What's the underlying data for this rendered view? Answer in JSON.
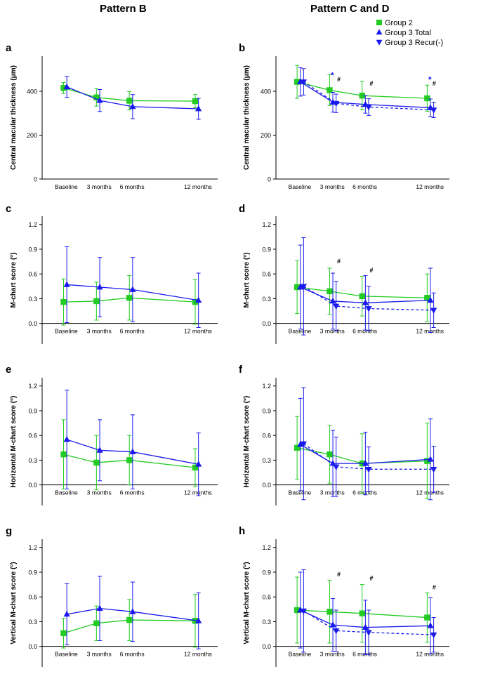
{
  "headers": {
    "left": "Pattern B",
    "right": "Pattern C and D"
  },
  "legend": {
    "items": [
      {
        "label": "Group 2",
        "color": "#22cc22",
        "marker": "square"
      },
      {
        "label": "Group 3 Total",
        "color": "#1a1aee",
        "marker": "triangle-up"
      },
      {
        "label": "Group 3 Recur(-)",
        "color": "#1a1aee",
        "marker": "triangle-down"
      }
    ]
  },
  "chart_data": [
    {
      "id": "a",
      "type": "line",
      "panel_label": "a",
      "ylabel": "Central macular thickness (μm)",
      "categories": [
        "Baseline",
        "3 months",
        "6 months",
        "12 months"
      ],
      "x": [
        0,
        3,
        6,
        12
      ],
      "ylim": [
        0,
        560
      ],
      "yticks": [
        "0",
        "200",
        "400"
      ],
      "ytick_values": [
        0,
        200,
        400
      ],
      "series": [
        {
          "name": "Group 2",
          "values": [
            415,
            372,
            357,
            355
          ],
          "err": [
            [
              25,
              25
            ],
            [
              40,
              40
            ],
            [
              42,
              42
            ],
            [
              30,
              30
            ]
          ]
        },
        {
          "name": "Group 3 Total",
          "values": [
            420,
            358,
            330,
            320
          ],
          "err": [
            [
              48,
              48
            ],
            [
              50,
              50
            ],
            [
              55,
              55
            ],
            [
              48,
              48
            ]
          ]
        }
      ],
      "annotations": []
    },
    {
      "id": "b",
      "type": "line",
      "panel_label": "b",
      "ylabel": "Central macular thickness (μm)",
      "categories": [
        "Baseline",
        "3 months",
        "6 months",
        "12 months"
      ],
      "x": [
        0,
        3,
        6,
        12
      ],
      "ylim": [
        0,
        560
      ],
      "yticks": [
        "0",
        "200",
        "400"
      ],
      "ytick_values": [
        0,
        200,
        400
      ],
      "series": [
        {
          "name": "Group 2",
          "values": [
            443,
            405,
            380,
            368
          ],
          "err": [
            [
              75,
              75
            ],
            [
              70,
              70
            ],
            [
              65,
              65
            ],
            [
              60,
              60
            ]
          ]
        },
        {
          "name": "Group 3 Total",
          "values": [
            443,
            350,
            340,
            325
          ],
          "err": [
            [
              65,
              65
            ],
            [
              45,
              45
            ],
            [
              40,
              40
            ],
            [
              40,
              40
            ]
          ]
        },
        {
          "name": "Group 3 Recur(-)",
          "values": [
            443,
            345,
            328,
            315
          ],
          "err": [
            [
              60,
              60
            ],
            [
              42,
              42
            ],
            [
              38,
              38
            ],
            [
              35,
              35
            ]
          ]
        }
      ],
      "annotations": [
        {
          "text": "*",
          "x": 3,
          "y": 460,
          "color": "#1a1aee"
        },
        {
          "text": "#",
          "x": 3.6,
          "y": 445,
          "color": "#000000"
        },
        {
          "text": "#",
          "x": 6.6,
          "y": 425,
          "color": "#000000"
        },
        {
          "text": "*",
          "x": 12,
          "y": 440,
          "color": "#1a1aee"
        },
        {
          "text": "#",
          "x": 12.4,
          "y": 425,
          "color": "#000000"
        }
      ]
    },
    {
      "id": "c",
      "type": "line",
      "panel_label": "c",
      "ylabel": "M-chart score (°)",
      "categories": [
        "Baseline",
        "3 months",
        "6 months",
        "12 months"
      ],
      "x": [
        0,
        3,
        6,
        12
      ],
      "ylim": [
        -0.25,
        1.3
      ],
      "yticks": [
        "0.0",
        "0.3",
        "0.6",
        "0.9",
        "1.2"
      ],
      "ytick_values": [
        0,
        0.3,
        0.6,
        0.9,
        1.2
      ],
      "series": [
        {
          "name": "Group 2",
          "values": [
            0.26,
            0.27,
            0.31,
            0.26
          ],
          "err": [
            [
              0.28,
              0.28
            ],
            [
              0.23,
              0.23
            ],
            [
              0.27,
              0.27
            ],
            [
              0.27,
              0.27
            ]
          ]
        },
        {
          "name": "Group 3 Total",
          "values": [
            0.47,
            0.44,
            0.41,
            0.28
          ],
          "err": [
            [
              0.46,
              0.46
            ],
            [
              0.36,
              0.36
            ],
            [
              0.39,
              0.39
            ],
            [
              0.33,
              0.33
            ]
          ]
        }
      ],
      "annotations": []
    },
    {
      "id": "d",
      "type": "line",
      "panel_label": "d",
      "ylabel": "M-chart score (°)",
      "categories": [
        "Baseline",
        "3 months",
        "6 months",
        "12 months"
      ],
      "x": [
        0,
        3,
        6,
        12
      ],
      "ylim": [
        -0.25,
        1.3
      ],
      "yticks": [
        "0.0",
        "0.3",
        "0.6",
        "0.9",
        "1.2"
      ],
      "ytick_values": [
        0,
        0.3,
        0.6,
        0.9,
        1.2
      ],
      "series": [
        {
          "name": "Group 2",
          "values": [
            0.44,
            0.39,
            0.33,
            0.31
          ],
          "err": [
            [
              0.32,
              0.32
            ],
            [
              0.28,
              0.28
            ],
            [
              0.24,
              0.24
            ],
            [
              0.29,
              0.29
            ]
          ]
        },
        {
          "name": "Group 3 Total",
          "values": [
            0.44,
            0.27,
            0.25,
            0.28
          ],
          "err": [
            [
              0.51,
              0.51
            ],
            [
              0.34,
              0.34
            ],
            [
              0.33,
              0.33
            ],
            [
              0.39,
              0.39
            ]
          ]
        },
        {
          "name": "Group 3 Recur(-)",
          "values": [
            0.45,
            0.21,
            0.18,
            0.16
          ],
          "err": [
            [
              0.59,
              0.59
            ],
            [
              0.3,
              0.3
            ],
            [
              0.27,
              0.27
            ],
            [
              0.21,
              0.21
            ]
          ]
        }
      ],
      "annotations": [
        {
          "text": "#",
          "x": 3.6,
          "y": 0.73,
          "color": "#000000"
        },
        {
          "text": "#",
          "x": 6.6,
          "y": 0.62,
          "color": "#000000"
        }
      ]
    },
    {
      "id": "e",
      "type": "line",
      "panel_label": "e",
      "ylabel": "Horizontal M-chart score (°)",
      "categories": [
        "Baseline",
        "3 months",
        "6 months",
        "12 months"
      ],
      "x": [
        0,
        3,
        6,
        12
      ],
      "ylim": [
        -0.25,
        1.3
      ],
      "yticks": [
        "0.0",
        "0.3",
        "0.6",
        "0.9",
        "1.2"
      ],
      "ytick_values": [
        0,
        0.3,
        0.6,
        0.9,
        1.2
      ],
      "series": [
        {
          "name": "Group 2",
          "values": [
            0.37,
            0.27,
            0.3,
            0.21
          ],
          "err": [
            [
              0.42,
              0.42
            ],
            [
              0.33,
              0.33
            ],
            [
              0.3,
              0.3
            ],
            [
              0.23,
              0.23
            ]
          ]
        },
        {
          "name": "Group 3 Total",
          "values": [
            0.55,
            0.42,
            0.4,
            0.25
          ],
          "err": [
            [
              0.6,
              0.6
            ],
            [
              0.37,
              0.37
            ],
            [
              0.45,
              0.45
            ],
            [
              0.38,
              0.38
            ]
          ]
        }
      ],
      "annotations": []
    },
    {
      "id": "f",
      "type": "line",
      "panel_label": "f",
      "ylabel": "Horizontal M-chart score (°)",
      "categories": [
        "Baseline",
        "3 months",
        "6 months",
        "12 months"
      ],
      "x": [
        0,
        3,
        6,
        12
      ],
      "ylim": [
        -0.25,
        1.3
      ],
      "yticks": [
        "0.0",
        "0.3",
        "0.6",
        "0.9",
        "1.2"
      ],
      "ytick_values": [
        0,
        0.3,
        0.6,
        0.9,
        1.2
      ],
      "series": [
        {
          "name": "Group 2",
          "values": [
            0.45,
            0.37,
            0.26,
            0.29
          ],
          "err": [
            [
              0.38,
              0.38
            ],
            [
              0.35,
              0.35
            ],
            [
              0.36,
              0.36
            ],
            [
              0.46,
              0.46
            ]
          ]
        },
        {
          "name": "Group 3 Total",
          "values": [
            0.49,
            0.26,
            0.26,
            0.31
          ],
          "err": [
            [
              0.56,
              0.56
            ],
            [
              0.4,
              0.4
            ],
            [
              0.38,
              0.38
            ],
            [
              0.49,
              0.49
            ]
          ]
        },
        {
          "name": "Group 3 Recur(-)",
          "values": [
            0.5,
            0.22,
            0.19,
            0.19
          ],
          "err": [
            [
              0.68,
              0.68
            ],
            [
              0.36,
              0.36
            ],
            [
              0.27,
              0.27
            ],
            [
              0.28,
              0.28
            ]
          ]
        }
      ],
      "annotations": []
    },
    {
      "id": "g",
      "type": "line",
      "panel_label": "g",
      "ylabel": "Vertical M-chart score (°)",
      "categories": [
        "Baseline",
        "3 months",
        "6 months",
        "12 months"
      ],
      "x": [
        0,
        3,
        6,
        12
      ],
      "ylim": [
        -0.25,
        1.3
      ],
      "yticks": [
        "0.0",
        "0.3",
        "0.6",
        "0.9",
        "1.2"
      ],
      "ytick_values": [
        0,
        0.3,
        0.6,
        0.9,
        1.2
      ],
      "series": [
        {
          "name": "Group 2",
          "values": [
            0.16,
            0.28,
            0.32,
            0.31
          ],
          "err": [
            [
              0.18,
              0.18
            ],
            [
              0.21,
              0.21
            ],
            [
              0.25,
              0.25
            ],
            [
              0.32,
              0.32
            ]
          ]
        },
        {
          "name": "Group 3 Total",
          "values": [
            0.39,
            0.46,
            0.42,
            0.31
          ],
          "err": [
            [
              0.37,
              0.37
            ],
            [
              0.39,
              0.39
            ],
            [
              0.36,
              0.36
            ],
            [
              0.34,
              0.34
            ]
          ]
        }
      ],
      "annotations": []
    },
    {
      "id": "h",
      "type": "line",
      "panel_label": "h",
      "ylabel": "Vertical M-chart score (°)",
      "categories": [
        "Baseline",
        "3 months",
        "6 months",
        "12 months"
      ],
      "x": [
        0,
        3,
        6,
        12
      ],
      "ylim": [
        -0.25,
        1.3
      ],
      "yticks": [
        "0.0",
        "0.3",
        "0.6",
        "0.9",
        "1.2"
      ],
      "ytick_values": [
        0,
        0.3,
        0.6,
        0.9,
        1.2
      ],
      "series": [
        {
          "name": "Group 2",
          "values": [
            0.44,
            0.42,
            0.4,
            0.35
          ],
          "err": [
            [
              0.4,
              0.4
            ],
            [
              0.38,
              0.38
            ],
            [
              0.35,
              0.35
            ],
            [
              0.3,
              0.3
            ]
          ]
        },
        {
          "name": "Group 3 Total",
          "values": [
            0.44,
            0.26,
            0.23,
            0.25
          ],
          "err": [
            [
              0.46,
              0.46
            ],
            [
              0.32,
              0.32
            ],
            [
              0.33,
              0.33
            ],
            [
              0.34,
              0.34
            ]
          ]
        },
        {
          "name": "Group 3 Recur(-)",
          "values": [
            0.43,
            0.19,
            0.17,
            0.14
          ],
          "err": [
            [
              0.5,
              0.5
            ],
            [
              0.25,
              0.25
            ],
            [
              0.27,
              0.27
            ],
            [
              0.21,
              0.21
            ]
          ]
        }
      ],
      "annotations": [
        {
          "text": "#",
          "x": 3.6,
          "y": 0.85,
          "color": "#000000"
        },
        {
          "text": "#",
          "x": 6.6,
          "y": 0.8,
          "color": "#000000"
        },
        {
          "text": "#",
          "x": 12.4,
          "y": 0.69,
          "color": "#000000"
        }
      ]
    }
  ]
}
